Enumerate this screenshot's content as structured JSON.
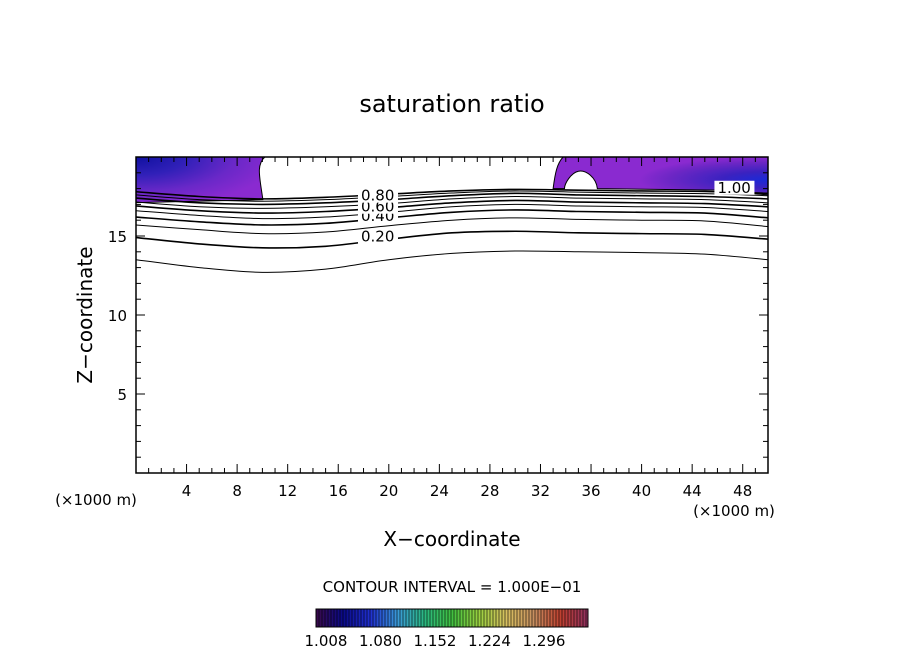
{
  "chart_data": {
    "type": "contour",
    "title": "saturation ratio",
    "xlabel": "X−coordinate",
    "ylabel": "Z−coordinate",
    "x_unit_left": "(×1000 m)",
    "x_unit_right": "(×1000 m)",
    "xlim": [
      0,
      50
    ],
    "ylim": [
      0,
      20
    ],
    "x_ticks": [
      4,
      8,
      12,
      16,
      20,
      24,
      28,
      32,
      36,
      40,
      44,
      48
    ],
    "y_ticks": [
      5,
      10,
      15
    ],
    "contour_interval_text": "CONTOUR INTERVAL = 1.000E−01",
    "contour_labels": [
      {
        "text": "0.20",
        "x": 17.8,
        "z": 14.7
      },
      {
        "text": "0.40",
        "x": 17.8,
        "z": 16.0
      },
      {
        "text": "0.60",
        "x": 17.8,
        "z": 16.6
      },
      {
        "text": "0.80",
        "x": 17.8,
        "z": 17.3
      },
      {
        "text": "1.00",
        "x": 46.0,
        "z": 17.8
      }
    ],
    "contours": [
      {
        "level": 0.1,
        "points": [
          [
            0,
            13.5
          ],
          [
            5,
            13.0
          ],
          [
            10,
            12.7
          ],
          [
            15,
            12.9
          ],
          [
            20,
            13.5
          ],
          [
            25,
            13.9
          ],
          [
            30,
            14.05
          ],
          [
            35,
            14.0
          ],
          [
            40,
            13.95
          ],
          [
            45,
            13.85
          ],
          [
            50,
            13.5
          ]
        ]
      },
      {
        "level": 0.2,
        "points": [
          [
            0,
            14.9
          ],
          [
            5,
            14.5
          ],
          [
            10,
            14.25
          ],
          [
            15,
            14.35
          ],
          [
            20,
            14.8
          ],
          [
            25,
            15.2
          ],
          [
            30,
            15.3
          ],
          [
            35,
            15.2
          ],
          [
            40,
            15.15
          ],
          [
            45,
            15.1
          ],
          [
            50,
            14.8
          ]
        ]
      },
      {
        "level": 0.3,
        "points": [
          [
            0,
            15.7
          ],
          [
            5,
            15.4
          ],
          [
            10,
            15.15
          ],
          [
            15,
            15.25
          ],
          [
            20,
            15.65
          ],
          [
            25,
            16.0
          ],
          [
            30,
            16.15
          ],
          [
            35,
            16.05
          ],
          [
            40,
            16.0
          ],
          [
            45,
            15.95
          ],
          [
            50,
            15.6
          ]
        ]
      },
      {
        "level": 0.4,
        "points": [
          [
            0,
            16.2
          ],
          [
            5,
            15.9
          ],
          [
            10,
            15.7
          ],
          [
            15,
            15.8
          ],
          [
            20,
            16.15
          ],
          [
            25,
            16.5
          ],
          [
            30,
            16.65
          ],
          [
            35,
            16.55
          ],
          [
            40,
            16.5
          ],
          [
            45,
            16.45
          ],
          [
            50,
            16.15
          ]
        ]
      },
      {
        "level": 0.5,
        "points": [
          [
            0,
            16.6
          ],
          [
            5,
            16.3
          ],
          [
            10,
            16.1
          ],
          [
            15,
            16.2
          ],
          [
            20,
            16.5
          ],
          [
            25,
            16.85
          ],
          [
            30,
            17.0
          ],
          [
            35,
            16.9
          ],
          [
            40,
            16.85
          ],
          [
            45,
            16.8
          ],
          [
            50,
            16.55
          ]
        ]
      },
      {
        "level": 0.6,
        "points": [
          [
            0,
            16.9
          ],
          [
            5,
            16.6
          ],
          [
            10,
            16.45
          ],
          [
            15,
            16.55
          ],
          [
            20,
            16.8
          ],
          [
            25,
            17.1
          ],
          [
            30,
            17.25
          ],
          [
            35,
            17.15
          ],
          [
            40,
            17.1
          ],
          [
            45,
            17.05
          ],
          [
            50,
            16.85
          ]
        ]
      },
      {
        "level": 0.7,
        "points": [
          [
            0,
            17.15
          ],
          [
            5,
            16.85
          ],
          [
            10,
            16.75
          ],
          [
            15,
            16.85
          ],
          [
            20,
            17.05
          ],
          [
            25,
            17.35
          ],
          [
            30,
            17.5
          ],
          [
            35,
            17.4
          ],
          [
            40,
            17.35
          ],
          [
            45,
            17.3
          ],
          [
            50,
            17.1
          ]
        ]
      },
      {
        "level": 0.8,
        "points": [
          [
            0,
            17.4
          ],
          [
            5,
            17.1
          ],
          [
            10,
            17.0
          ],
          [
            15,
            17.1
          ],
          [
            20,
            17.3
          ],
          [
            25,
            17.55
          ],
          [
            30,
            17.7
          ],
          [
            35,
            17.6
          ],
          [
            40,
            17.55
          ],
          [
            45,
            17.5
          ],
          [
            50,
            17.35
          ]
        ]
      },
      {
        "level": 0.9,
        "points": [
          [
            0,
            17.6
          ],
          [
            5,
            17.3
          ],
          [
            10,
            17.2
          ],
          [
            15,
            17.3
          ],
          [
            20,
            17.5
          ],
          [
            25,
            17.72
          ],
          [
            30,
            17.85
          ],
          [
            35,
            17.78
          ],
          [
            40,
            17.72
          ],
          [
            45,
            17.68
          ],
          [
            50,
            17.55
          ]
        ]
      },
      {
        "level": 1.0,
        "points": [
          [
            0,
            17.8
          ],
          [
            5,
            17.5
          ],
          [
            10,
            17.35
          ],
          [
            15,
            17.45
          ],
          [
            20,
            17.65
          ],
          [
            25,
            17.85
          ],
          [
            30,
            17.95
          ],
          [
            35,
            17.9
          ],
          [
            40,
            17.85
          ],
          [
            45,
            17.82
          ],
          [
            50,
            17.7
          ]
        ]
      }
    ],
    "filled_regions": [
      {
        "name": "supersaturated-left",
        "levels": [
          1.008,
          1.08,
          1.152,
          1.224,
          1.296
        ],
        "x_range": [
          0,
          9.8
        ],
        "z_range": [
          17.3,
          20
        ]
      },
      {
        "name": "supersaturated-right",
        "levels": [
          1.008,
          1.08,
          1.152,
          1.224,
          1.296
        ],
        "x_range": [
          33.0,
          50
        ],
        "z_range": [
          17.8,
          20
        ]
      }
    ],
    "colorbar": {
      "ticks": [
        "1.008",
        "1.080",
        "1.152",
        "1.224",
        "1.296"
      ],
      "colors": [
        "#3a0a4a",
        "#0a0a8a",
        "#2030d0",
        "#3a9ad8",
        "#2ab880",
        "#40c040",
        "#9ad040",
        "#d8c060",
        "#c89060",
        "#c04030",
        "#903060"
      ]
    }
  }
}
